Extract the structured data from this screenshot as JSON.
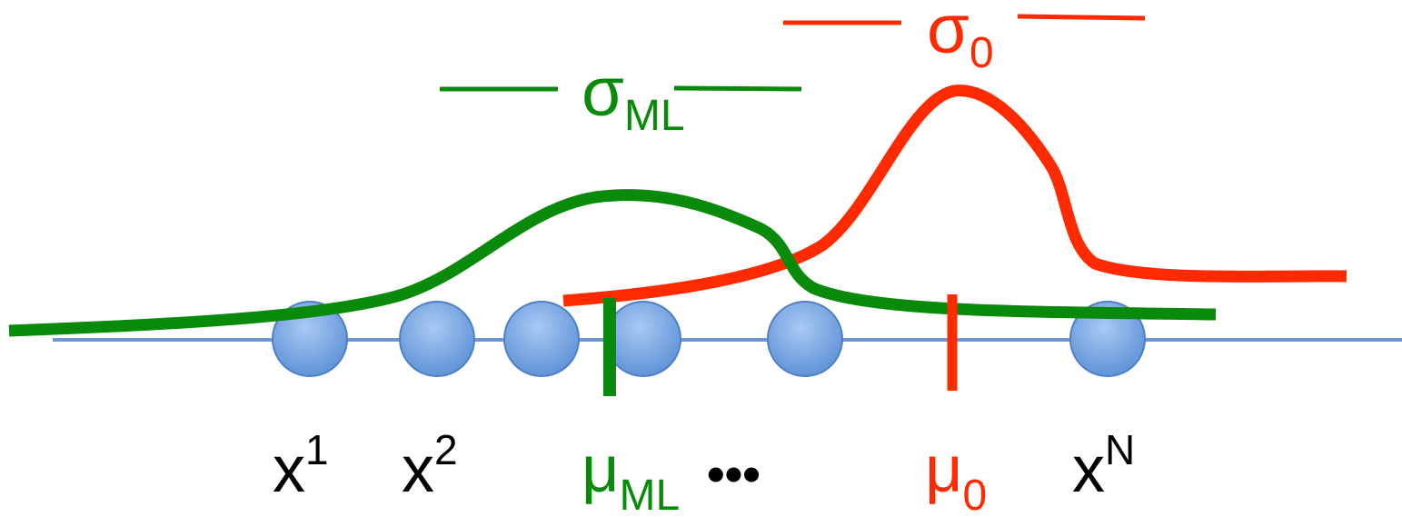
{
  "colors": {
    "green": "#0a8a0a",
    "red": "#ff2a00",
    "axis": "#6e96cf",
    "dot_fill": "#6fa2e4",
    "dot_stroke": "#4f80c3",
    "text": "#000000"
  },
  "labels": {
    "x1": {
      "base": "x",
      "sup": "1"
    },
    "x2": {
      "base": "x",
      "sup": "2"
    },
    "mu_ml": {
      "base": "μ",
      "sub": "ML"
    },
    "ellipsis": "•••",
    "mu0": {
      "base": "μ",
      "sub": "0"
    },
    "xN": {
      "base": "x",
      "sup": "N"
    },
    "sigma_ml": {
      "base": "σ",
      "sub": "ML"
    },
    "sigma0": {
      "base": "σ",
      "sub": "0"
    }
  },
  "points": [
    {
      "name": "x1"
    },
    {
      "name": "x2"
    },
    {
      "name": "x3"
    },
    {
      "name": "x4"
    },
    {
      "name": "x5"
    },
    {
      "name": "xN"
    }
  ],
  "curves": [
    {
      "name": "ml-estimate",
      "color_key": "green"
    },
    {
      "name": "prior",
      "color_key": "red"
    }
  ]
}
